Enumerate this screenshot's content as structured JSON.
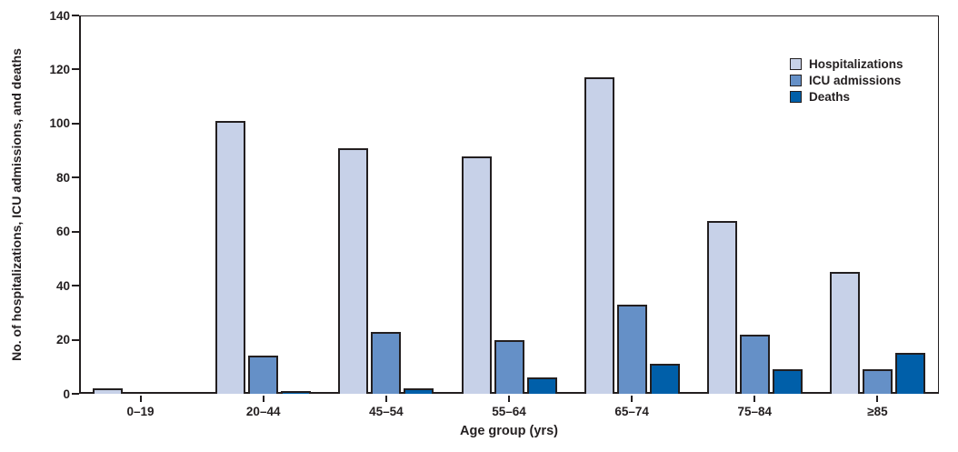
{
  "chart_data": {
    "type": "bar",
    "title": "",
    "xlabel": "Age group (yrs)",
    "ylabel": "No. of hospitalizations, ICU admissions, and deaths",
    "ylim": [
      0,
      140
    ],
    "ytick_step": 20,
    "yticks": [
      0,
      20,
      40,
      60,
      80,
      100,
      120,
      140
    ],
    "grid": false,
    "legend_position": "top-right-inside",
    "categories": [
      "0–19",
      "20–44",
      "45–54",
      "55–64",
      "65–74",
      "75–84",
      "≥85"
    ],
    "series": [
      {
        "name": "Hospitalizations",
        "color": "#c7d1e8",
        "values": [
          2,
          101,
          91,
          88,
          117,
          64,
          45
        ]
      },
      {
        "name": "ICU admissions",
        "color": "#6590c7",
        "values": [
          0,
          14,
          23,
          20,
          33,
          22,
          9
        ]
      },
      {
        "name": "Deaths",
        "color": "#005fa9",
        "values": [
          0,
          1,
          2,
          6,
          11,
          9,
          15
        ]
      }
    ],
    "colors": {
      "outline": "#231f20",
      "text": "#231f20",
      "background": "#ffffff"
    }
  }
}
